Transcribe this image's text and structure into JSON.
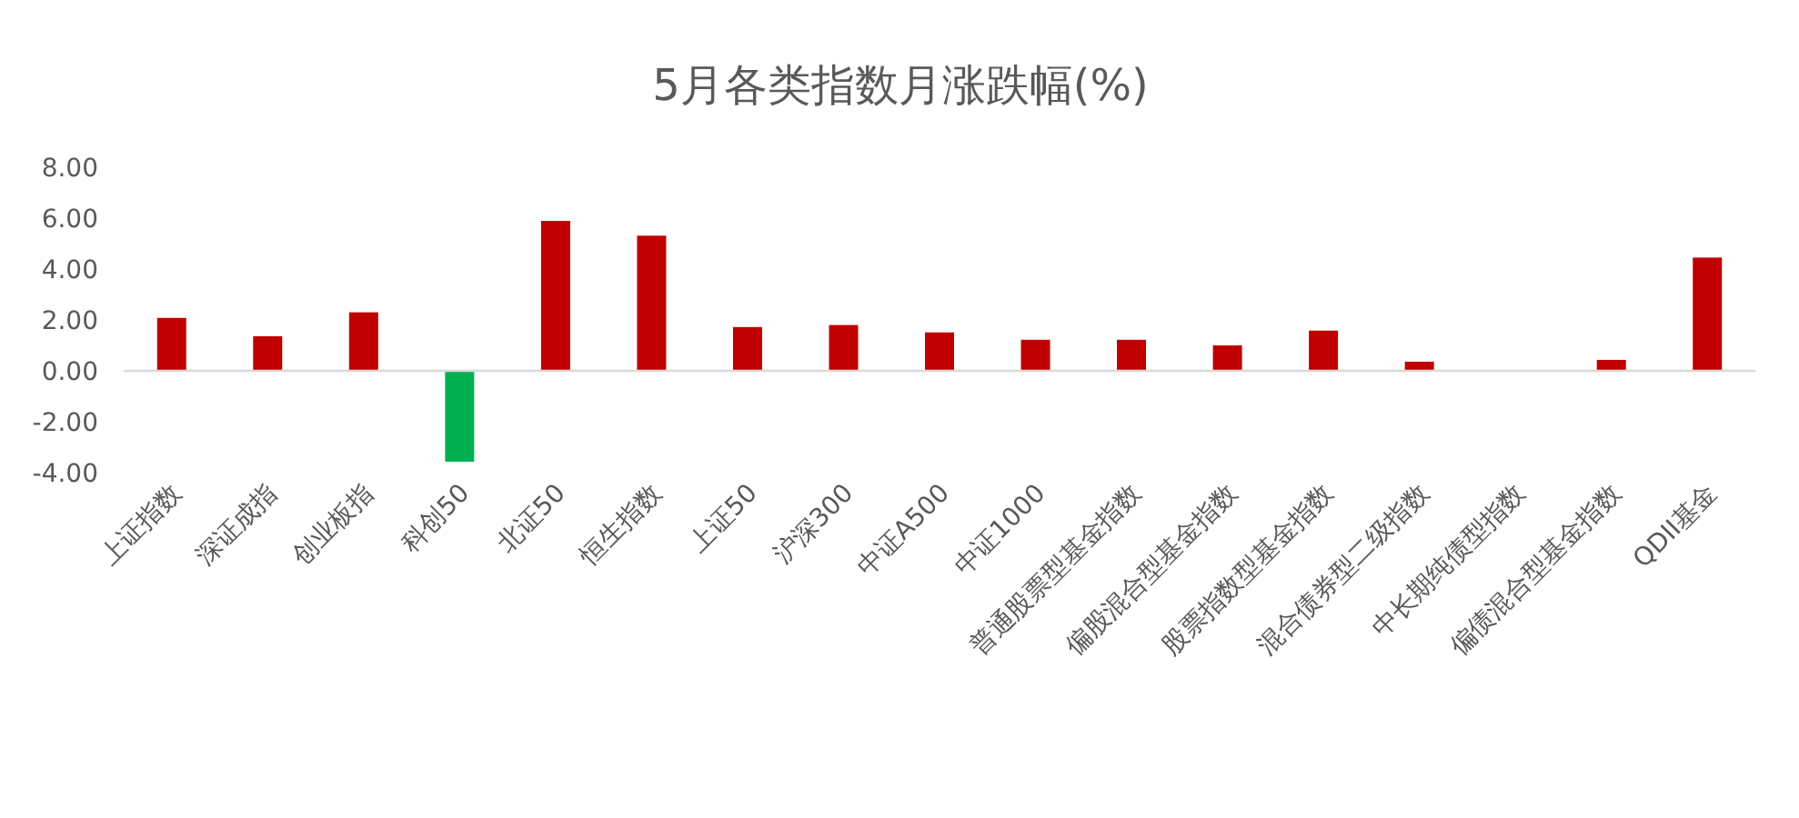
{
  "chart_data": {
    "type": "bar",
    "title": "5月各类指数月涨跌幅(%)",
    "categories": [
      "上证指数",
      "深证成指",
      "创业板指",
      "科创50",
      "北证50",
      "恒生指数",
      "上证50",
      "沪深300",
      "中证A500",
      "中证1000",
      "普通股票型基金指数",
      "偏股混合型基金指数",
      "股票指数型基金指数",
      "混合债券型二级指数",
      "中长期纯债型指数",
      "偏债混合型基金指数",
      "QDII基金"
    ],
    "values": [
      2.08,
      1.36,
      2.3,
      -3.57,
      5.89,
      5.31,
      1.72,
      1.8,
      1.51,
      1.22,
      1.22,
      1.0,
      1.58,
      0.36,
      0.0,
      0.43,
      4.45
    ],
    "colors": [
      "#c00000",
      "#c00000",
      "#c00000",
      "#00b050",
      "#c00000",
      "#c00000",
      "#c00000",
      "#c00000",
      "#c00000",
      "#c00000",
      "#c00000",
      "#c00000",
      "#c00000",
      "#c00000",
      "#c00000",
      "#c00000",
      "#c00000"
    ],
    "ylim": [
      -4,
      8
    ],
    "yticks": [
      {
        "value": -4,
        "label": "-4.00"
      },
      {
        "value": -2,
        "label": "-2.00"
      },
      {
        "value": 0,
        "label": "0.00"
      },
      {
        "value": 2,
        "label": "2.00"
      },
      {
        "value": 4,
        "label": "4.00"
      },
      {
        "value": 6,
        "label": "6.00"
      },
      {
        "value": 8,
        "label": "8.00"
      }
    ]
  }
}
